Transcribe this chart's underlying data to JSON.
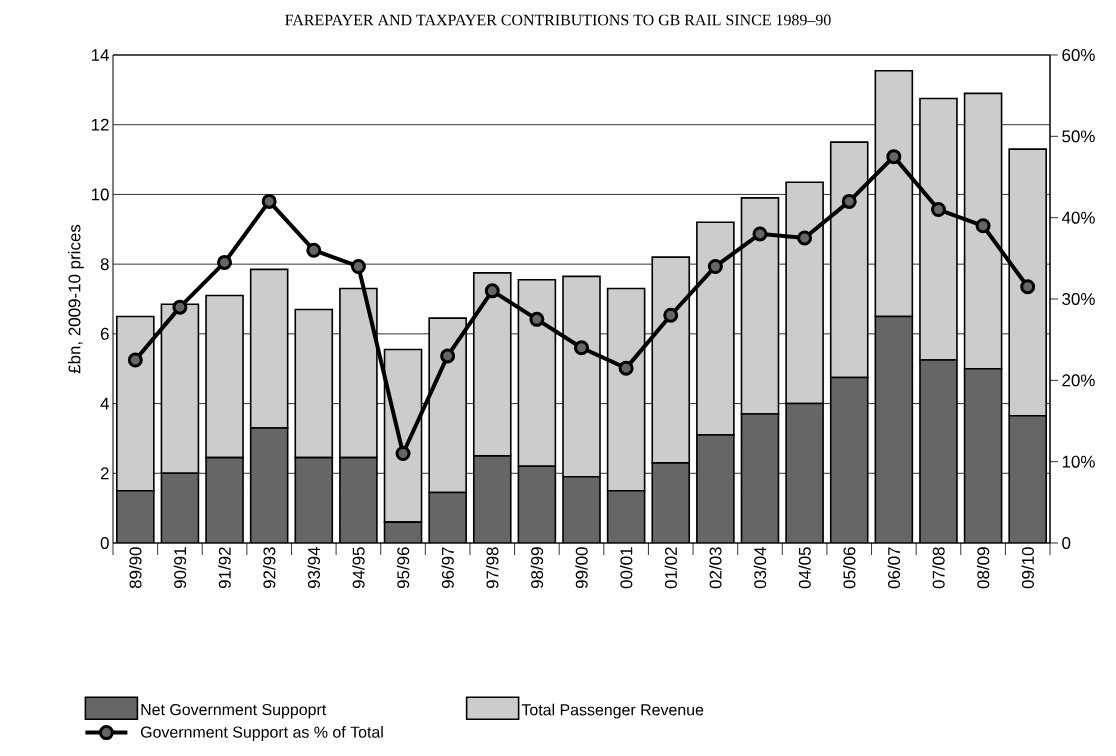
{
  "chart_data": {
    "type": "bar",
    "title": "FAREPAYER AND TAXPAYER CONTRIBUTIONS TO GB RAIL SINCE 1989–90",
    "ylabel": "£bn, 2009-10 prices",
    "categories": [
      "89/90",
      "90/91",
      "91/92",
      "92/93",
      "93/94",
      "94/95",
      "95/96",
      "96/97",
      "97/98",
      "98/99",
      "99/00",
      "00/01",
      "01/02",
      "02/03",
      "03/04",
      "04/05",
      "05/06",
      "06/07",
      "07/08",
      "08/09",
      "09/10"
    ],
    "stacked": true,
    "series": [
      {
        "name": "Net Government Suppoprt",
        "color": "#666666",
        "values": [
          1.5,
          2.0,
          2.45,
          3.3,
          2.45,
          2.45,
          0.6,
          1.45,
          2.5,
          2.2,
          1.9,
          1.5,
          2.3,
          3.1,
          3.7,
          4.0,
          4.75,
          6.5,
          5.25,
          5.0,
          3.65
        ]
      },
      {
        "name": "Total Passenger Revenue",
        "color": "#cccccc",
        "values": [
          5.0,
          4.85,
          4.65,
          4.55,
          4.25,
          4.85,
          4.95,
          5.0,
          5.25,
          5.35,
          5.75,
          5.8,
          5.9,
          6.1,
          6.2,
          6.35,
          6.75,
          7.05,
          7.5,
          7.9,
          7.65
        ]
      },
      {
        "name": "Government Support as % of Total",
        "type": "line",
        "axis": "y2",
        "color": "#000000",
        "values": [
          22.5,
          29,
          34.5,
          42,
          36,
          34,
          11,
          23,
          31,
          27.5,
          24,
          21.5,
          28,
          34,
          38,
          37.5,
          42,
          47.5,
          41,
          39,
          31.5
        ]
      }
    ],
    "marker": "circle",
    "ylim": [
      0,
      14
    ],
    "yticks": [
      0,
      2,
      4,
      6,
      8,
      10,
      12,
      14
    ],
    "y2lim": [
      0,
      60
    ],
    "y2ticks": [
      0,
      {
        "value": 10,
        "label": "10%"
      },
      {
        "value": 20,
        "label": "20%"
      },
      {
        "value": 30,
        "label": "30%"
      },
      {
        "value": 40,
        "label": "40%"
      },
      {
        "value": 50,
        "label": "50%"
      },
      {
        "value": 60,
        "label": "60%"
      }
    ],
    "grid": "y",
    "legend": "bottom"
  }
}
